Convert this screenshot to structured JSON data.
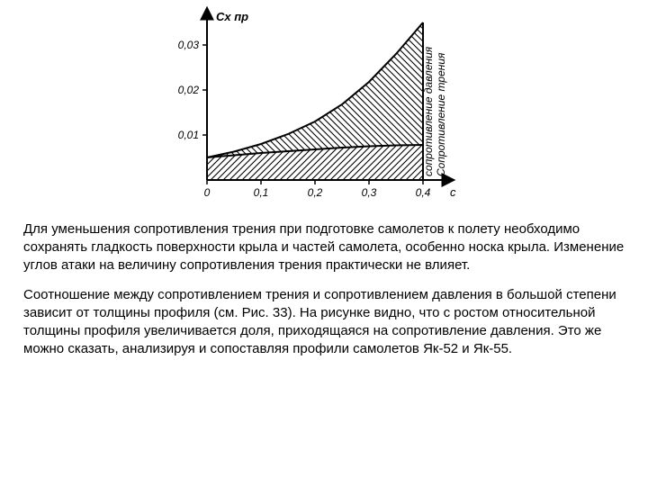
{
  "chart": {
    "type": "area",
    "axis_color": "#000000",
    "line_width": 2,
    "hatch_stroke": "#000000",
    "hatch_width": 1.1,
    "text_color": "#000000",
    "tick_fontsize": 12,
    "label_fontsize": 13,
    "italic_labels": true,
    "y_label": "Cx пр",
    "x_label": "c",
    "x_ticks": [
      {
        "v": 0.0,
        "label": "0"
      },
      {
        "v": 0.1,
        "label": "0,1"
      },
      {
        "v": 0.2,
        "label": "0,2"
      },
      {
        "v": 0.3,
        "label": "0,3"
      },
      {
        "v": 0.4,
        "label": "0,4"
      }
    ],
    "y_ticks": [
      {
        "v": 0.01,
        "label": "0,01"
      },
      {
        "v": 0.02,
        "label": "0,02"
      },
      {
        "v": 0.03,
        "label": "0,03"
      }
    ],
    "x_range": [
      0,
      0.4
    ],
    "y_range": [
      0,
      0.035
    ],
    "series_lower": [
      {
        "x": 0.0,
        "y": 0.005
      },
      {
        "x": 0.05,
        "y": 0.0055
      },
      {
        "x": 0.1,
        "y": 0.006
      },
      {
        "x": 0.15,
        "y": 0.0064
      },
      {
        "x": 0.2,
        "y": 0.0068
      },
      {
        "x": 0.25,
        "y": 0.0072
      },
      {
        "x": 0.3,
        "y": 0.0075
      },
      {
        "x": 0.35,
        "y": 0.0077
      },
      {
        "x": 0.4,
        "y": 0.0078
      }
    ],
    "series_upper": [
      {
        "x": 0.0,
        "y": 0.005
      },
      {
        "x": 0.05,
        "y": 0.0063
      },
      {
        "x": 0.1,
        "y": 0.008
      },
      {
        "x": 0.15,
        "y": 0.0102
      },
      {
        "x": 0.2,
        "y": 0.013
      },
      {
        "x": 0.25,
        "y": 0.0168
      },
      {
        "x": 0.3,
        "y": 0.0218
      },
      {
        "x": 0.35,
        "y": 0.028
      },
      {
        "x": 0.4,
        "y": 0.035
      }
    ],
    "side_label_upper": "сопротивление давления",
    "side_label_lower": "Сопротивление трения"
  },
  "paragraphs": {
    "p1": "Для уменьшения сопротивления трения при подготовке самолетов к полету необходимо сохранять гладкость поверхности крыла и частей самолета, особенно носка крыла. Изменение углов атаки на величину  сопротивления трения практически не влияет.",
    "p2": "Соотношение между сопротивлением трения и сопротивлением давления в большой степени зависит от толщины профиля (см. Рис. 33). На рисунке видно, что с ростом относительной толщины профиля увеличивается доля, приходящаяся на сопротивление давления. Это же можно сказать, анализируя и сопоставляя профили самолетов Як-52 и Як-55."
  }
}
